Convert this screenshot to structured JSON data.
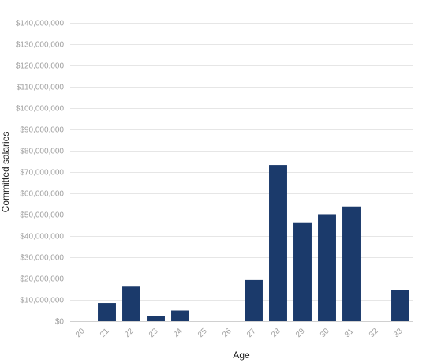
{
  "chart_data": {
    "type": "bar",
    "xlabel": "Age",
    "ylabel": "Committed salaries",
    "categories": [
      "20",
      "21",
      "22",
      "23",
      "24",
      "25",
      "26",
      "27",
      "28",
      "29",
      "30",
      "31",
      "32",
      "33"
    ],
    "values": [
      0,
      8500000,
      16200000,
      2500000,
      5000000,
      0,
      0,
      19300000,
      73300000,
      46400000,
      50200000,
      53800000,
      0,
      14500000
    ],
    "ylim": [
      0,
      140000000
    ],
    "yticks": [
      0,
      10000000,
      20000000,
      30000000,
      40000000,
      50000000,
      60000000,
      70000000,
      80000000,
      90000000,
      100000000,
      110000000,
      120000000,
      130000000,
      140000000
    ],
    "ytick_labels": [
      "$0",
      "$10,000,000",
      "$20,000,000",
      "$30,000,000",
      "$40,000,000",
      "$50,000,000",
      "$60,000,000",
      "$70,000,000",
      "$80,000,000",
      "$90,000,000",
      "$100,000,000",
      "$110,000,000",
      "$120,000,000",
      "$130,000,000",
      "$140,000,000"
    ],
    "grid": true,
    "bar_color": "#1b3a6b"
  }
}
